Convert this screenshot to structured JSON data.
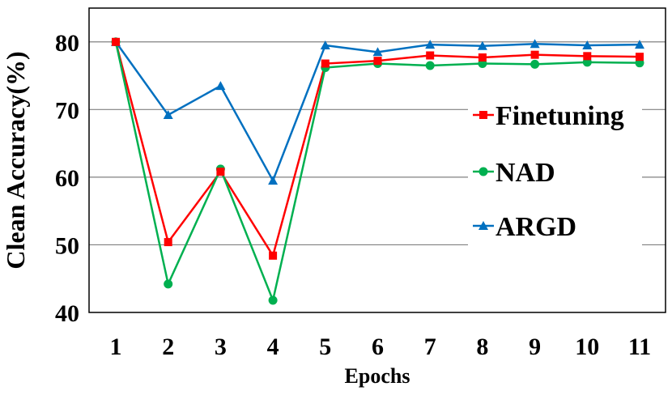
{
  "chart_data": {
    "type": "line",
    "xlabel": "Epochs",
    "ylabel": "Clean Accuracy(%)",
    "categories": [
      "1",
      "2",
      "3",
      "4",
      "5",
      "6",
      "7",
      "8",
      "9",
      "10",
      "11"
    ],
    "ylim": [
      40,
      85
    ],
    "yticks": [
      40,
      50,
      60,
      70,
      80
    ],
    "grid": true,
    "legend_position": "right",
    "series": [
      {
        "name": "Finetuning",
        "color": "#ff0000",
        "marker": "square",
        "values": [
          80.0,
          50.4,
          60.8,
          48.4,
          76.8,
          77.2,
          78.0,
          77.7,
          78.1,
          77.9,
          77.8
        ]
      },
      {
        "name": "NAD",
        "color": "#00b050",
        "marker": "circle",
        "values": [
          80.0,
          44.2,
          61.2,
          41.8,
          76.2,
          76.8,
          76.5,
          76.8,
          76.7,
          77.0,
          76.9
        ]
      },
      {
        "name": "ARGD",
        "color": "#0070c0",
        "marker": "triangle",
        "values": [
          80.0,
          69.2,
          73.5,
          59.5,
          79.5,
          78.5,
          79.6,
          79.4,
          79.7,
          79.5,
          79.6
        ]
      }
    ]
  }
}
